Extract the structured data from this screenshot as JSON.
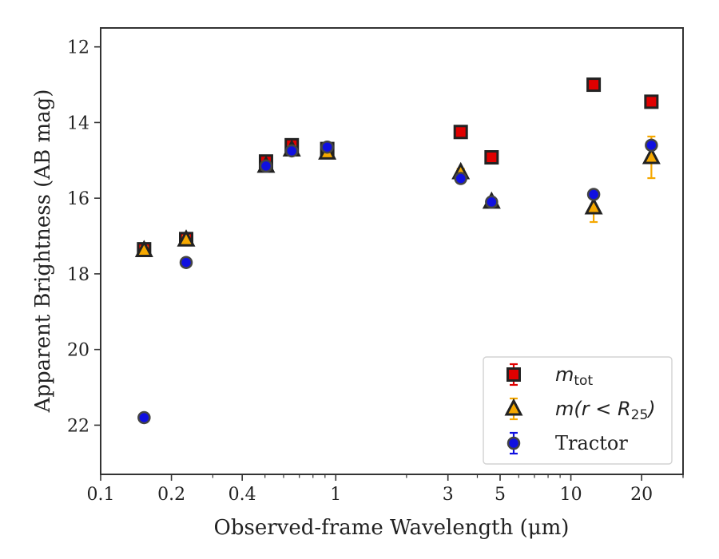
{
  "chart_data": {
    "type": "scatter",
    "xlabel": "Observed-frame Wavelength (μm)",
    "ylabel": "Apparent Brightness (AB mag)",
    "x_scale": "log",
    "xlim": [
      0.1,
      30
    ],
    "ylim": [
      23.3,
      11.5
    ],
    "y_inverted": true,
    "x_ticks": [
      0.1,
      0.2,
      0.4,
      1,
      3,
      5,
      10,
      20
    ],
    "x_tick_labels": [
      "0.1",
      "0.2",
      "0.4",
      "1",
      "3",
      "5",
      "10",
      "20"
    ],
    "y_ticks": [
      12,
      14,
      16,
      18,
      20,
      22
    ],
    "y_tick_labels": [
      "12",
      "14",
      "16",
      "18",
      "20",
      "22"
    ],
    "grid": false,
    "legend_position": "bottom-right",
    "series": [
      {
        "name": "m_tot",
        "legend_base": "m",
        "legend_sub": "tot",
        "marker": "square",
        "color": "#e00000",
        "edge_color": "#222222",
        "points": [
          {
            "x": 0.153,
            "y": 17.35,
            "err": 0.1
          },
          {
            "x": 0.231,
            "y": 17.08,
            "err": 0.1
          },
          {
            "x": 0.505,
            "y": 15.03,
            "err": 0.1
          },
          {
            "x": 0.65,
            "y": 14.6,
            "err": 0.1
          },
          {
            "x": 0.92,
            "y": 14.7,
            "err": 0.1
          },
          {
            "x": 3.4,
            "y": 14.25,
            "err": 0.05
          },
          {
            "x": 4.6,
            "y": 14.92,
            "err": 0.05
          },
          {
            "x": 12.5,
            "y": 13.0,
            "err": 0.05
          },
          {
            "x": 22.0,
            "y": 13.45,
            "err": 0.05
          }
        ]
      },
      {
        "name": "m(r < R25)",
        "legend_base": "m(r < R",
        "legend_sub": "25",
        "legend_tail": ")",
        "marker": "triangle",
        "color": "#f5a800",
        "edge_color": "#222222",
        "points": [
          {
            "x": 0.153,
            "y": 17.38,
            "err": 0.1
          },
          {
            "x": 0.231,
            "y": 17.1,
            "err": 0.1
          },
          {
            "x": 0.505,
            "y": 15.15,
            "err": 0.1
          },
          {
            "x": 0.65,
            "y": 14.72,
            "err": 0.1
          },
          {
            "x": 0.92,
            "y": 14.8,
            "err": 0.1
          },
          {
            "x": 3.4,
            "y": 15.32,
            "err": 0.1
          },
          {
            "x": 4.6,
            "y": 16.1,
            "err": 0.1
          },
          {
            "x": 12.5,
            "y": 16.25,
            "err": 0.38
          },
          {
            "x": 22.0,
            "y": 14.92,
            "err": 0.55
          }
        ]
      },
      {
        "name": "Tractor",
        "marker": "circle",
        "color": "#1010e0",
        "edge_color": "#444444",
        "points": [
          {
            "x": 0.153,
            "y": 21.8,
            "err": 0.05
          },
          {
            "x": 0.231,
            "y": 17.7,
            "err": 0.05
          },
          {
            "x": 0.505,
            "y": 15.15,
            "err": 0.05
          },
          {
            "x": 0.65,
            "y": 14.75,
            "err": 0.05
          },
          {
            "x": 0.92,
            "y": 14.65,
            "err": 0.05
          },
          {
            "x": 3.4,
            "y": 15.48,
            "err": 0.05
          },
          {
            "x": 4.6,
            "y": 16.1,
            "err": 0.05
          },
          {
            "x": 12.5,
            "y": 15.9,
            "err": 0.05
          },
          {
            "x": 22.0,
            "y": 14.6,
            "err": 0.1
          }
        ]
      }
    ]
  }
}
